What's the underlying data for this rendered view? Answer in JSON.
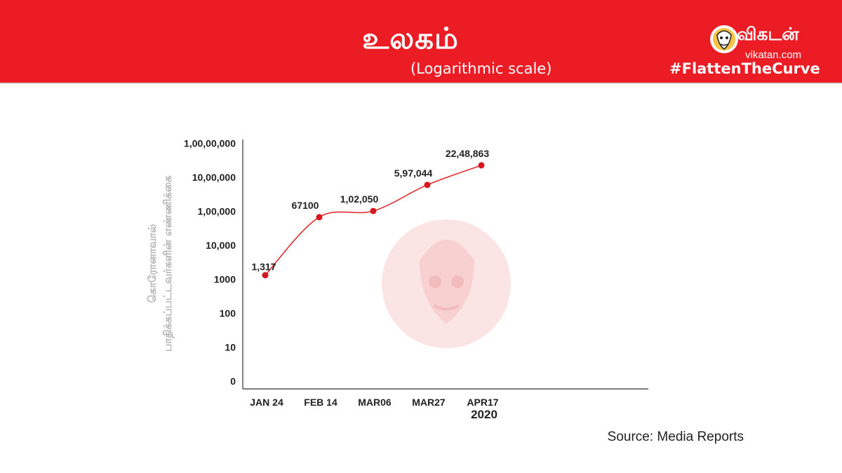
{
  "header": {
    "title": "உலகம்",
    "subtitle": "(Logarithmic scale)",
    "brand_name": "விகடன்",
    "brand_url": "vikatan.com",
    "hashtag": "#FlattenTheCurve"
  },
  "y_axis_label_lines": [
    "கொரோனாவால்",
    "பாதிக்கப்பட்டவர்களின் எண்ணிக்கை"
  ],
  "source": "Source: Media Reports",
  "colors": {
    "banner": "#ec1c24",
    "line": "#e31e24",
    "marker": "#d7161d",
    "watermark": "#fbe4e4"
  },
  "icons": {
    "logo": "vikatan-face-logo",
    "watermark": "vikatan-face-watermark"
  },
  "chart_data": {
    "type": "line",
    "scale": "log",
    "year_label": "2020",
    "y_tick_labels": [
      "0",
      "10",
      "100",
      "1000",
      "10,000",
      "1,00,000",
      "10,00,000",
      "1,00,00,000"
    ],
    "categories": [
      "JAN 24",
      "FEB 14",
      "MAR06",
      "MAR27",
      "APR17"
    ],
    "values": [
      1317,
      67100,
      102050,
      597044,
      2248863
    ],
    "value_labels": [
      "1,317",
      "67100",
      "1,02,050",
      "5,97,044",
      "22,48,863"
    ],
    "grid": false,
    "legend": "none"
  }
}
